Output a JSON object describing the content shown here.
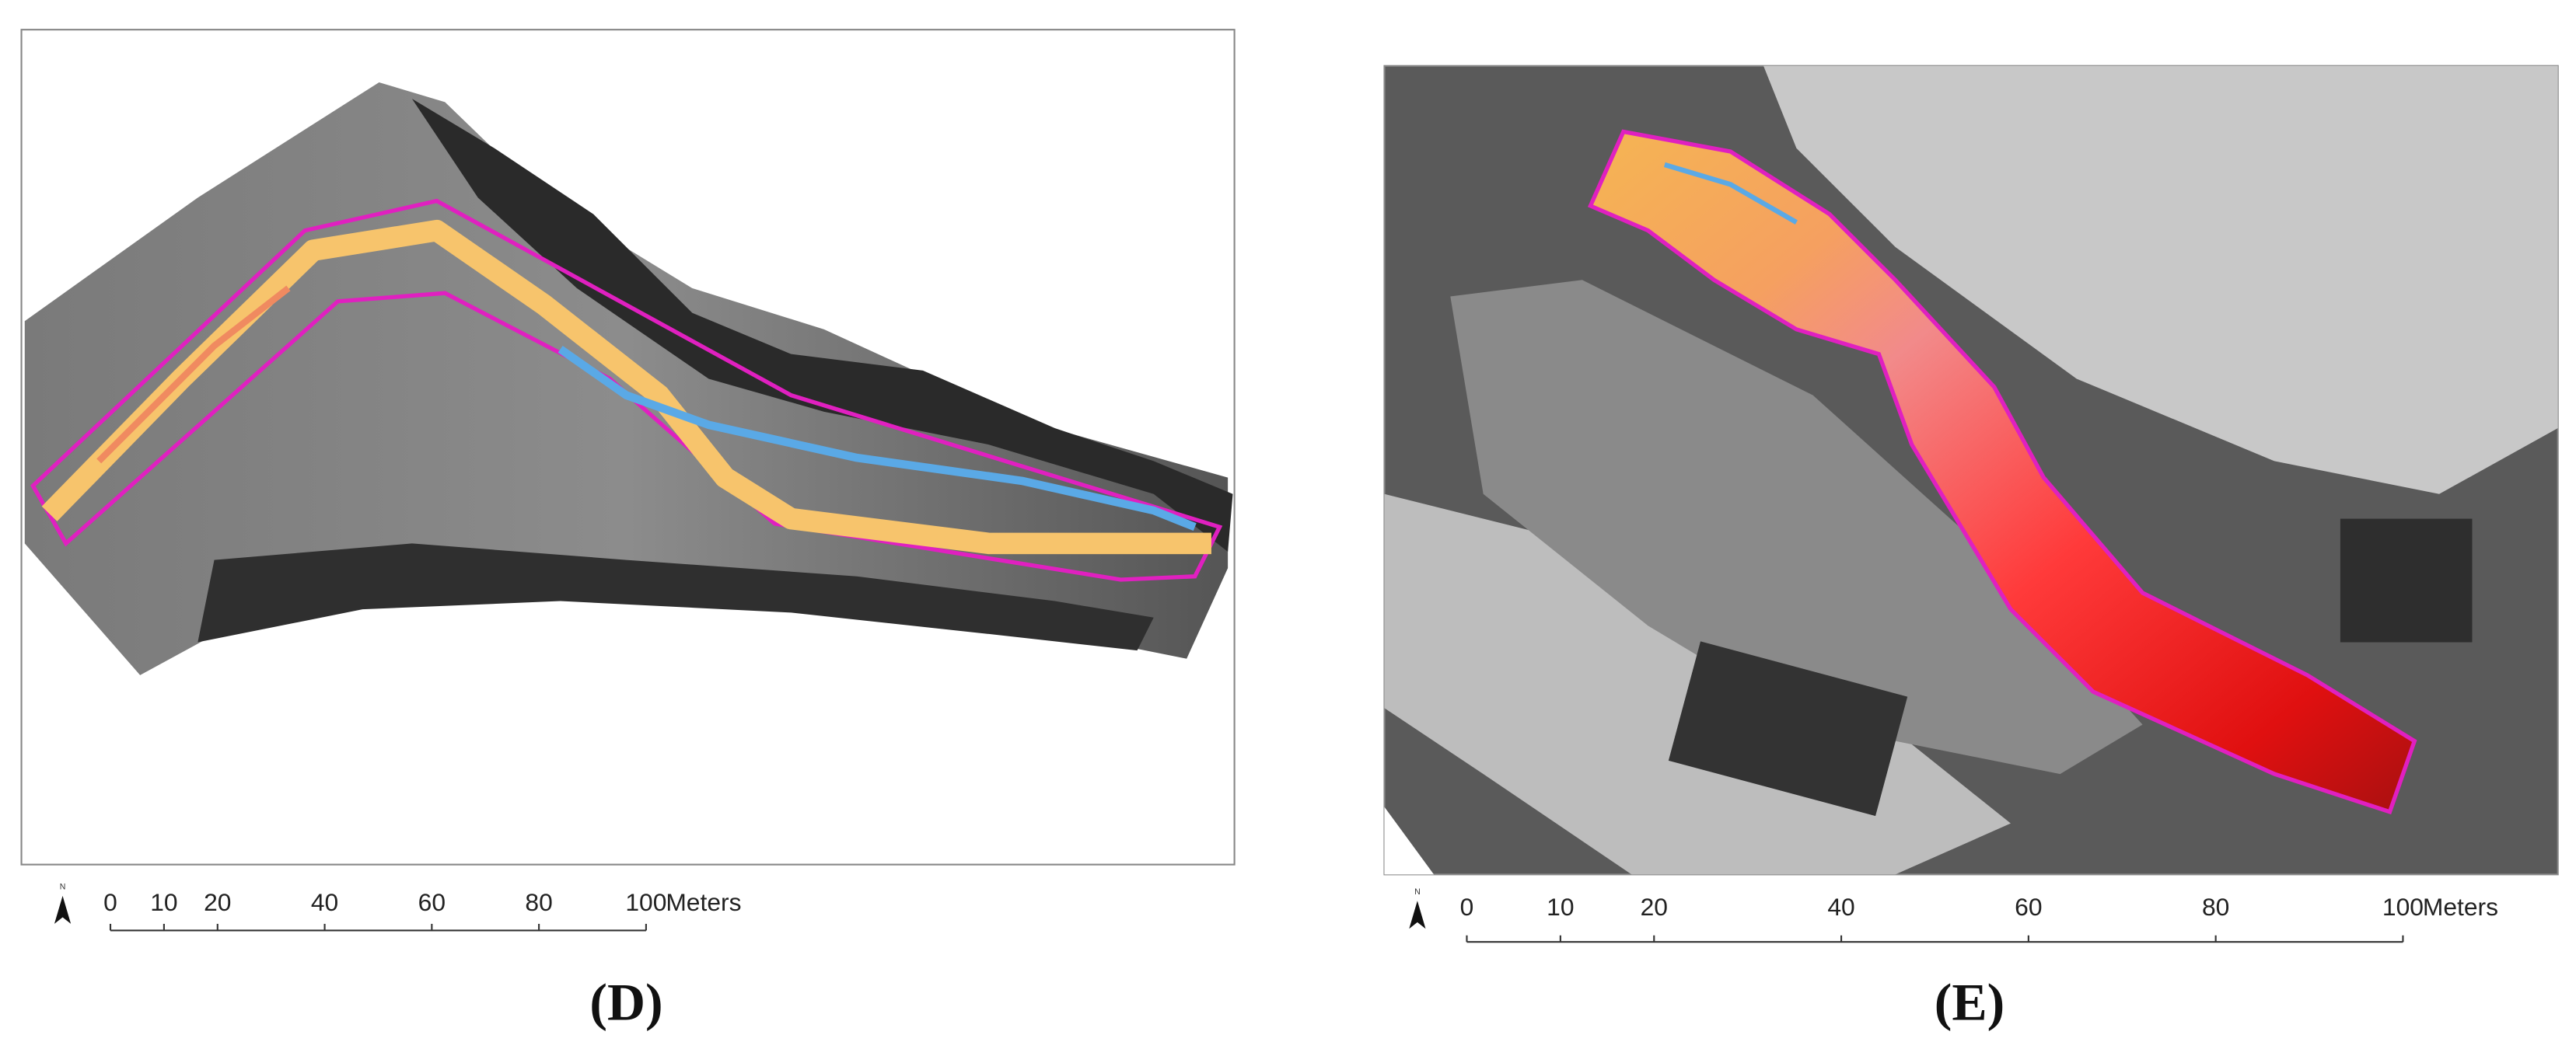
{
  "panels": [
    {
      "caption": "(D)",
      "scale_bar": {
        "ticks": [
          0,
          10,
          20,
          40,
          60,
          80,
          100
        ],
        "unit": "Meters",
        "north": "N"
      }
    },
    {
      "caption": "(E)",
      "scale_bar": {
        "ticks": [
          0,
          10,
          20,
          40,
          60,
          80,
          100
        ],
        "unit": "Meters",
        "north": "N"
      }
    }
  ]
}
